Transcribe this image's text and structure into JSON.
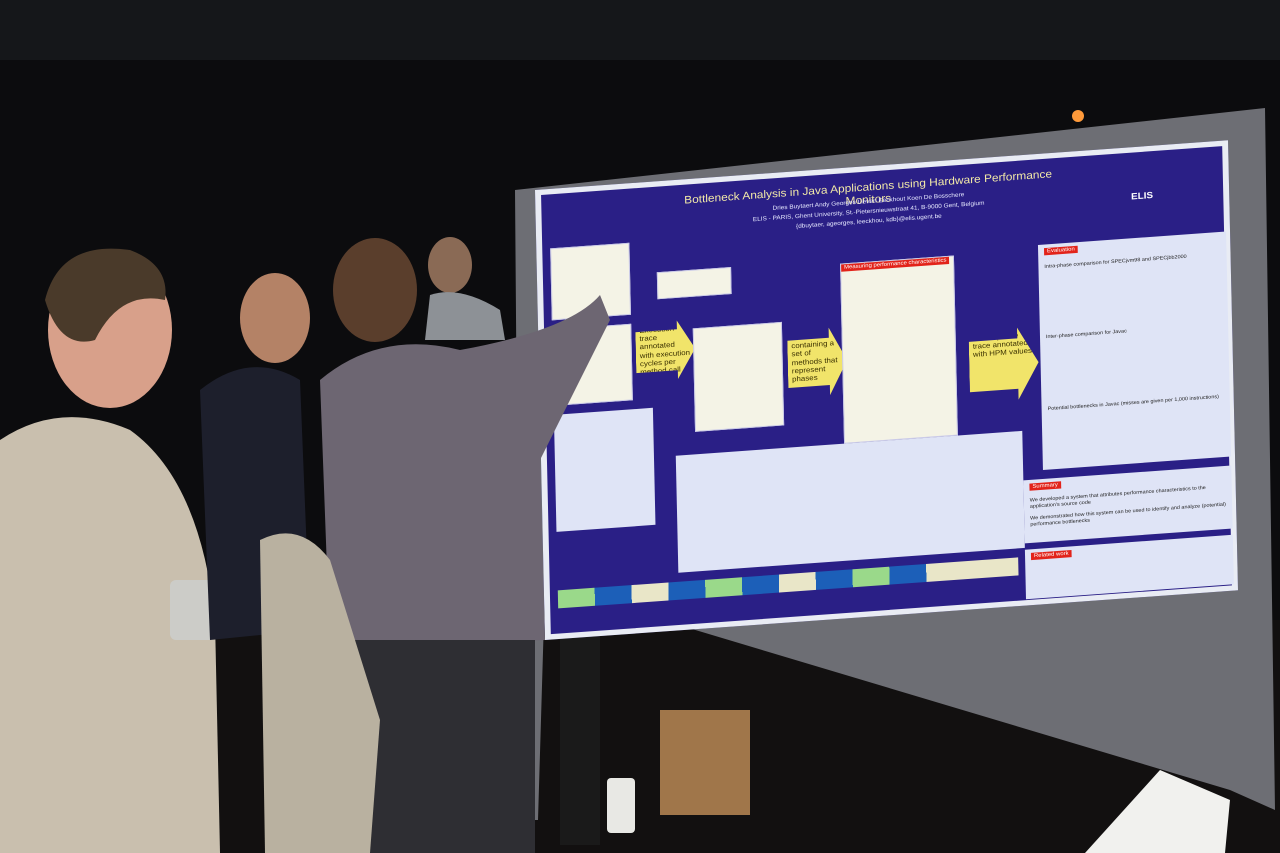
{
  "poster": {
    "title": "Bottleneck Analysis in Java Applications using Hardware Performance Monitors",
    "authors": "Dries Buytaert     Andy Georges     Lieven Eeckhout     Koen De Bosschere",
    "affiliation": "ELIS - PARIS, Ghent University, St.-Pietersnieuwstraat 41, B-9000 Gent, Belgium",
    "email": "{dbuytaer, ageorges, leeckhou, kdb}@elis.ugent.be",
    "logo": "ELIS",
    "arrows": [
      "Execution trace annotated with execution cycles per method call",
      "Phase list containing a set of methods that represent phases",
      "Actual phase trace annotated with HPM values"
    ],
    "measuring": "Measuring performance characteristics",
    "evaluation": {
      "heading": "Evaluation",
      "lines": [
        "Intra-phase comparison for SPECjvm98 and SPECjbb2000",
        "Inter-phase comparison for Javac",
        "Potential bottlenecks in Javac (misses are given per 1,000 instructions)"
      ]
    },
    "summary": {
      "heading": "Summary",
      "lines": [
        "We developed a system that attributes performance characteristics to the application's source code",
        "We demonstrated how this system can be used to identify and analyze (potential) performance bottlenecks"
      ]
    },
    "related": "Related work"
  }
}
